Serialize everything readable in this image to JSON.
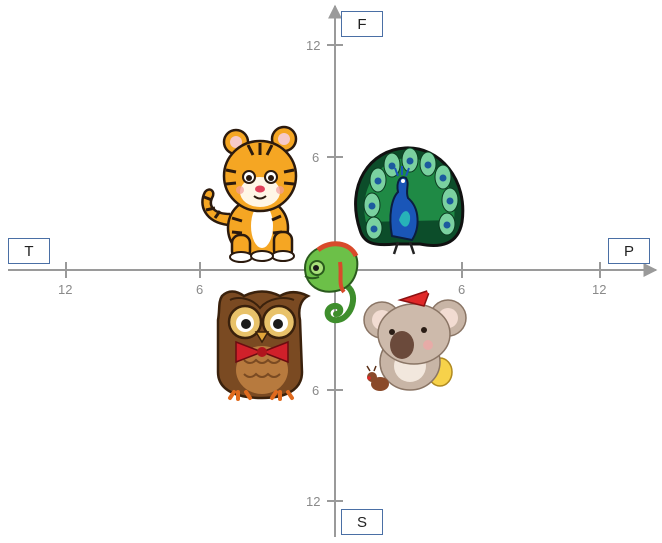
{
  "poles": {
    "top": "F",
    "bottom": "S",
    "left": "T",
    "right": "P"
  },
  "ticks": {
    "x_left": [
      "12",
      "6"
    ],
    "x_right": [
      "6",
      "12"
    ],
    "y_top": [
      "12",
      "6"
    ],
    "y_bottom": [
      "6",
      "12"
    ]
  },
  "animals": [
    {
      "name": "tiger"
    },
    {
      "name": "peacock"
    },
    {
      "name": "chameleon"
    },
    {
      "name": "owl"
    },
    {
      "name": "koala"
    }
  ],
  "colors": {
    "axis": "#9a9a9a",
    "box_border": "#4a6fa5"
  }
}
